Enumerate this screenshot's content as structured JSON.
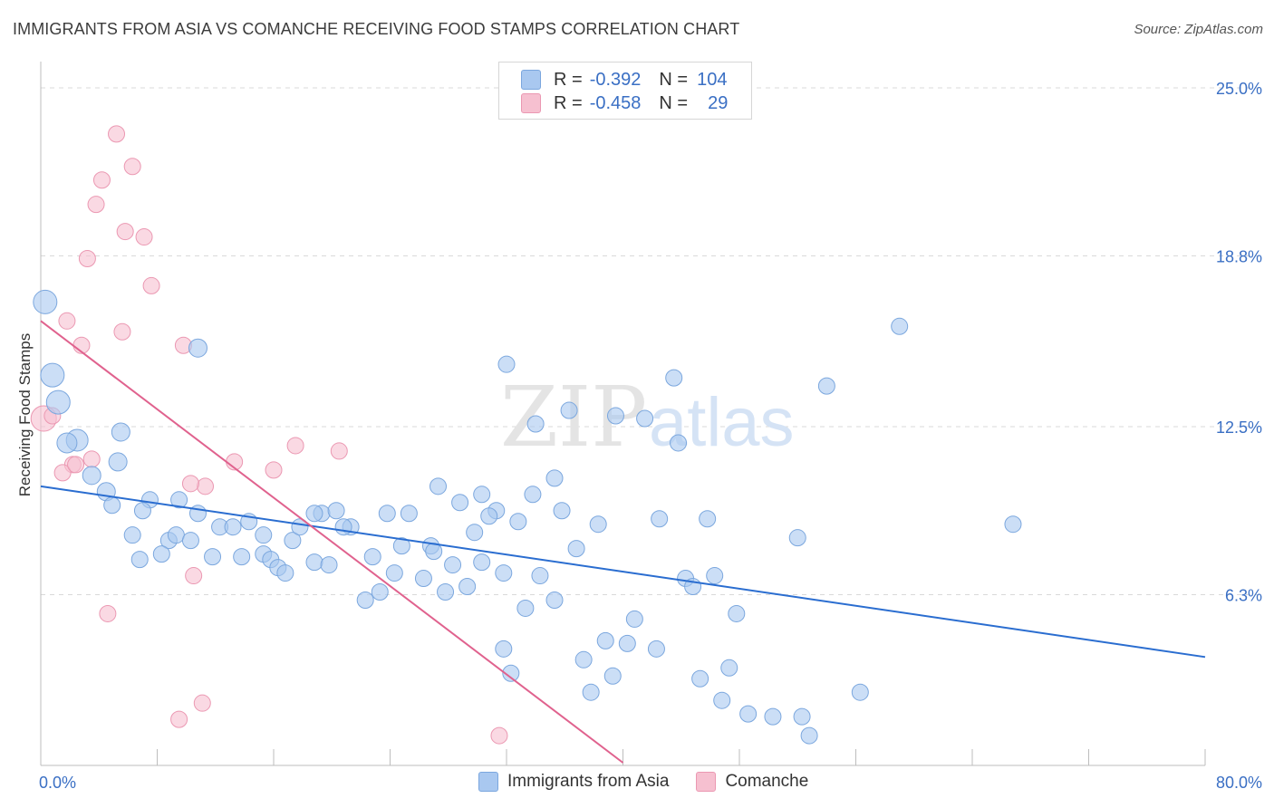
{
  "header": {
    "title": "IMMIGRANTS FROM ASIA VS COMANCHE RECEIVING FOOD STAMPS CORRELATION CHART",
    "source": "Source: ZipAtlas.com"
  },
  "legend_stats": [
    {
      "r_label": "R =",
      "r_value": "-0.392",
      "n_label": "N =",
      "n_value": "104"
    },
    {
      "r_label": "R =",
      "r_value": "-0.458",
      "n_label": "N =",
      "n_value": "29"
    }
  ],
  "legend": [
    {
      "label": "Immigrants from Asia"
    },
    {
      "label": "Comanche"
    }
  ],
  "watermark": {
    "part1": "ZIP",
    "part2": "atlas"
  },
  "colors": {
    "blue_fill": "#a9c8f0",
    "blue_stroke": "#7ba7de",
    "blue_line": "#2a6dd0",
    "pink_fill": "#f6c0d0",
    "pink_stroke": "#eb98b2",
    "pink_line": "#e0628e",
    "tick_label": "#3a6fc4",
    "grid": "#d9d9d9"
  },
  "chart_data": {
    "type": "scatter",
    "title": "IMMIGRANTS FROM ASIA VS COMANCHE RECEIVING FOOD STAMPS CORRELATION CHART",
    "xlabel": "",
    "ylabel": "Receiving Food Stamps",
    "xlim": [
      0,
      80
    ],
    "ylim": [
      0,
      25
    ],
    "x_tick_labels": [
      "0.0%",
      "80.0%"
    ],
    "y_ticks": [
      6.3,
      12.5,
      18.8,
      25.0
    ],
    "y_tick_labels": [
      "6.3%",
      "12.5%",
      "18.8%",
      "25.0%"
    ],
    "grid": "horizontal dashed",
    "legend_position": "bottom",
    "series": [
      {
        "name": "Immigrants from Asia",
        "color": "#a9c8f0",
        "trend": {
          "x1": 0,
          "y1": 10.3,
          "x2": 80,
          "y2": 4.0
        },
        "points": [
          [
            0.3,
            17.1,
            13
          ],
          [
            0.8,
            14.4,
            13
          ],
          [
            1.2,
            13.4,
            13
          ],
          [
            2.5,
            12.0,
            12
          ],
          [
            1.8,
            11.9,
            11
          ],
          [
            3.5,
            10.7,
            10
          ],
          [
            4.5,
            10.1,
            10
          ],
          [
            5.5,
            12.3,
            10
          ],
          [
            5.3,
            11.2,
            10
          ],
          [
            4.9,
            9.6,
            9
          ],
          [
            7.5,
            9.8,
            9
          ],
          [
            7.0,
            9.4,
            9
          ],
          [
            9.5,
            9.8,
            9
          ],
          [
            10.8,
            9.3,
            9
          ],
          [
            6.3,
            8.5,
            9
          ],
          [
            8.8,
            8.3,
            9
          ],
          [
            9.3,
            8.5,
            9
          ],
          [
            10.3,
            8.3,
            9
          ],
          [
            12.3,
            8.8,
            9
          ],
          [
            13.2,
            8.8,
            9
          ],
          [
            14.3,
            9.0,
            9
          ],
          [
            15.3,
            8.5,
            9
          ],
          [
            17.3,
            8.3,
            9
          ],
          [
            17.8,
            8.8,
            9
          ],
          [
            19.3,
            9.3,
            9
          ],
          [
            20.3,
            9.4,
            9
          ],
          [
            21.3,
            8.8,
            9
          ],
          [
            23.8,
            9.3,
            9
          ],
          [
            25.3,
            9.3,
            9
          ],
          [
            27.3,
            10.3,
            9
          ],
          [
            28.8,
            9.7,
            9
          ],
          [
            29.8,
            8.6,
            9
          ],
          [
            30.3,
            10.0,
            9
          ],
          [
            31.3,
            9.4,
            9
          ],
          [
            32.8,
            9.0,
            9
          ],
          [
            33.8,
            10.0,
            9
          ],
          [
            35.3,
            10.6,
            9
          ],
          [
            34.0,
            12.6,
            9
          ],
          [
            36.3,
            13.1,
            9
          ],
          [
            39.5,
            12.9,
            9
          ],
          [
            41.5,
            12.8,
            9
          ],
          [
            42.5,
            9.1,
            9
          ],
          [
            43.5,
            14.3,
            9
          ],
          [
            43.8,
            11.9,
            9
          ],
          [
            45.8,
            9.1,
            9
          ],
          [
            38.3,
            8.9,
            9
          ],
          [
            32.0,
            14.8,
            9
          ],
          [
            10.8,
            15.4,
            10
          ],
          [
            6.8,
            7.6,
            9
          ],
          [
            8.3,
            7.8,
            9
          ],
          [
            11.8,
            7.7,
            9
          ],
          [
            13.8,
            7.7,
            9
          ],
          [
            15.3,
            7.8,
            9
          ],
          [
            15.8,
            7.6,
            9
          ],
          [
            16.3,
            7.3,
            9
          ],
          [
            16.8,
            7.1,
            9
          ],
          [
            18.8,
            7.5,
            9
          ],
          [
            19.8,
            7.4,
            9
          ],
          [
            22.8,
            7.7,
            9
          ],
          [
            24.3,
            7.1,
            9
          ],
          [
            26.8,
            8.1,
            9
          ],
          [
            27.0,
            7.9,
            9
          ],
          [
            28.3,
            7.4,
            9
          ],
          [
            29.3,
            6.6,
            9
          ],
          [
            30.3,
            7.5,
            9
          ],
          [
            31.8,
            7.1,
            9
          ],
          [
            34.3,
            7.0,
            9
          ],
          [
            36.8,
            8.0,
            9
          ],
          [
            22.3,
            6.1,
            9
          ],
          [
            23.3,
            6.4,
            9
          ],
          [
            27.8,
            6.4,
            9
          ],
          [
            33.3,
            5.8,
            9
          ],
          [
            35.3,
            6.1,
            9
          ],
          [
            44.3,
            6.9,
            9
          ],
          [
            44.8,
            6.6,
            9
          ],
          [
            46.3,
            7.0,
            9
          ],
          [
            47.8,
            5.6,
            9
          ],
          [
            40.8,
            5.4,
            9
          ],
          [
            38.8,
            4.6,
            9
          ],
          [
            40.3,
            4.5,
            9
          ],
          [
            42.3,
            4.3,
            9
          ],
          [
            31.8,
            4.3,
            9
          ],
          [
            32.3,
            3.4,
            9
          ],
          [
            37.3,
            3.9,
            9
          ],
          [
            37.8,
            2.7,
            9
          ],
          [
            39.3,
            3.3,
            9
          ],
          [
            45.3,
            3.2,
            9
          ],
          [
            47.3,
            3.6,
            9
          ],
          [
            46.8,
            2.4,
            9
          ],
          [
            48.6,
            1.9,
            9
          ],
          [
            50.3,
            1.8,
            9
          ],
          [
            52.3,
            1.8,
            9
          ],
          [
            52.8,
            1.1,
            9
          ],
          [
            56.3,
            2.7,
            9
          ],
          [
            52.0,
            8.4,
            9
          ],
          [
            54.0,
            14.0,
            9
          ],
          [
            59.0,
            16.2,
            9
          ],
          [
            66.8,
            8.9,
            9
          ],
          [
            20.8,
            8.8,
            9
          ],
          [
            18.8,
            9.3,
            9
          ],
          [
            24.8,
            8.1,
            9
          ],
          [
            30.8,
            9.2,
            9
          ],
          [
            35.8,
            9.4,
            9
          ],
          [
            26.3,
            6.9,
            9
          ]
        ]
      },
      {
        "name": "Comanche",
        "color": "#f6c0d0",
        "trend": {
          "x1": 0,
          "y1": 16.4,
          "x2": 40,
          "y2": 0.1
        },
        "points": [
          [
            5.2,
            23.3,
            9
          ],
          [
            6.3,
            22.1,
            9
          ],
          [
            4.2,
            21.6,
            9
          ],
          [
            3.8,
            20.7,
            9
          ],
          [
            5.8,
            19.7,
            9
          ],
          [
            7.1,
            19.5,
            9
          ],
          [
            3.2,
            18.7,
            9
          ],
          [
            7.6,
            17.7,
            9
          ],
          [
            1.8,
            16.4,
            9
          ],
          [
            5.6,
            16.0,
            9
          ],
          [
            2.8,
            15.5,
            9
          ],
          [
            9.8,
            15.5,
            9
          ],
          [
            0.2,
            12.8,
            14
          ],
          [
            0.8,
            12.9,
            9
          ],
          [
            2.2,
            11.1,
            9
          ],
          [
            3.5,
            11.3,
            9
          ],
          [
            1.5,
            10.8,
            9
          ],
          [
            2.4,
            11.1,
            9
          ],
          [
            13.3,
            11.2,
            9
          ],
          [
            11.3,
            10.3,
            9
          ],
          [
            16.0,
            10.9,
            9
          ],
          [
            17.5,
            11.8,
            9
          ],
          [
            20.5,
            11.6,
            9
          ],
          [
            10.3,
            10.4,
            9
          ],
          [
            10.5,
            7.0,
            9
          ],
          [
            4.6,
            5.6,
            9
          ],
          [
            11.1,
            2.3,
            9
          ],
          [
            9.5,
            1.7,
            9
          ],
          [
            31.5,
            1.1,
            9
          ]
        ]
      }
    ]
  }
}
